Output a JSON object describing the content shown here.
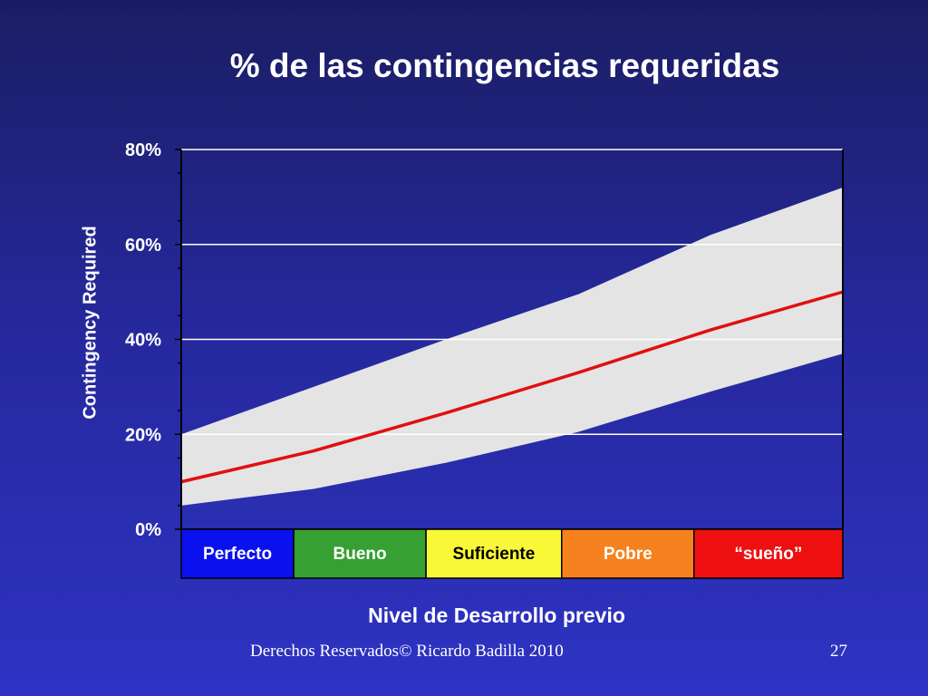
{
  "chart_data": {
    "type": "area",
    "title": "% de las contingencias requeridas",
    "xlabel": "Nivel de Desarrollo previo",
    "ylabel": "Contingency Required",
    "ylim": [
      0,
      80
    ],
    "yticks": [
      "0%",
      "20%",
      "40%",
      "60%",
      "80%"
    ],
    "grid": true,
    "x": [
      0,
      0.2,
      0.4,
      0.6,
      0.8,
      1.0
    ],
    "series": [
      {
        "values": [
          10,
          16.5,
          24.5,
          33,
          42,
          50
        ]
      },
      {
        "values": [
          20,
          30,
          40,
          49.5,
          62,
          72
        ]
      },
      {
        "values": [
          5,
          8.5,
          14,
          20.5,
          29,
          37
        ]
      }
    ],
    "colors": {
      "line": "#e01010",
      "band": "#e4e4e4",
      "grid": "#ffffff"
    },
    "categories": [
      {
        "label": "Perfecto",
        "color": "#0a10ee",
        "text_color": "#ffffff"
      },
      {
        "label": "Bueno",
        "color": "#36a032",
        "text_color": "#ffffff"
      },
      {
        "label": "Suficiente",
        "color": "#f8f838",
        "text_color": "#000000"
      },
      {
        "label": "Pobre",
        "color": "#f5821e",
        "text_color": "#ffffff"
      },
      {
        "label": "“sueño”",
        "color": "#ee1010",
        "text_color": "#ffffff"
      }
    ]
  },
  "footer": {
    "copyright": "Derechos Reservados© Ricardo Badilla 2010",
    "page": "27"
  }
}
